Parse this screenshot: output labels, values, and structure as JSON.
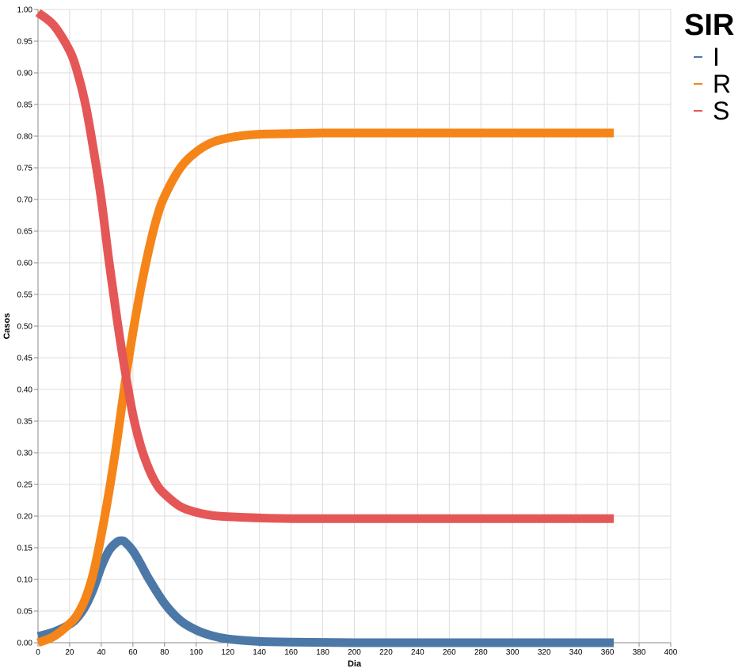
{
  "chart_data": {
    "type": "line",
    "title": "",
    "xlabel": "Dia",
    "ylabel": "Casos",
    "xlim": [
      0,
      400
    ],
    "ylim": [
      0,
      1
    ],
    "x_ticks": [
      0,
      20,
      40,
      60,
      80,
      100,
      120,
      140,
      160,
      180,
      200,
      220,
      240,
      260,
      280,
      300,
      320,
      340,
      360,
      380,
      400
    ],
    "y_ticks": [
      "0.00",
      "0.05",
      "0.10",
      "0.15",
      "0.20",
      "0.25",
      "0.30",
      "0.35",
      "0.40",
      "0.45",
      "0.50",
      "0.55",
      "0.60",
      "0.65",
      "0.70",
      "0.75",
      "0.80",
      "0.85",
      "0.90",
      "0.95",
      "1.00"
    ],
    "grid": true,
    "legend": {
      "title": "SIR",
      "placement": "top-right"
    },
    "series": [
      {
        "name": "I",
        "color": "#4c78a8",
        "x": [
          0,
          10,
          20,
          25,
          30,
          35,
          40,
          45,
          50,
          53,
          55,
          60,
          65,
          70,
          80,
          90,
          100,
          110,
          120,
          140,
          160,
          200,
          250,
          300,
          364
        ],
        "y": [
          0.01,
          0.017,
          0.029,
          0.04,
          0.058,
          0.085,
          0.12,
          0.146,
          0.159,
          0.161,
          0.159,
          0.145,
          0.124,
          0.101,
          0.062,
          0.035,
          0.02,
          0.011,
          0.006,
          0.002,
          0.001,
          0.0,
          0.0,
          0.0,
          0.0
        ]
      },
      {
        "name": "R",
        "color": "#f58518",
        "x": [
          0,
          10,
          20,
          25,
          30,
          35,
          40,
          45,
          50,
          55,
          60,
          65,
          70,
          75,
          80,
          90,
          100,
          110,
          120,
          130,
          140,
          160,
          180,
          200,
          250,
          300,
          364
        ],
        "y": [
          0.0,
          0.01,
          0.03,
          0.045,
          0.07,
          0.11,
          0.17,
          0.24,
          0.32,
          0.41,
          0.49,
          0.56,
          0.62,
          0.67,
          0.705,
          0.75,
          0.775,
          0.79,
          0.797,
          0.801,
          0.803,
          0.804,
          0.805,
          0.805,
          0.805,
          0.805,
          0.805
        ]
      },
      {
        "name": "S",
        "color": "#e45756",
        "x": [
          0,
          10,
          20,
          25,
          30,
          35,
          40,
          45,
          50,
          55,
          60,
          65,
          70,
          75,
          80,
          90,
          100,
          110,
          120,
          130,
          140,
          160,
          200,
          250,
          300,
          364
        ],
        "y": [
          0.995,
          0.975,
          0.935,
          0.9,
          0.85,
          0.78,
          0.7,
          0.6,
          0.51,
          0.43,
          0.36,
          0.31,
          0.275,
          0.25,
          0.235,
          0.215,
          0.206,
          0.201,
          0.199,
          0.198,
          0.197,
          0.196,
          0.196,
          0.196,
          0.196,
          0.196
        ]
      }
    ]
  }
}
